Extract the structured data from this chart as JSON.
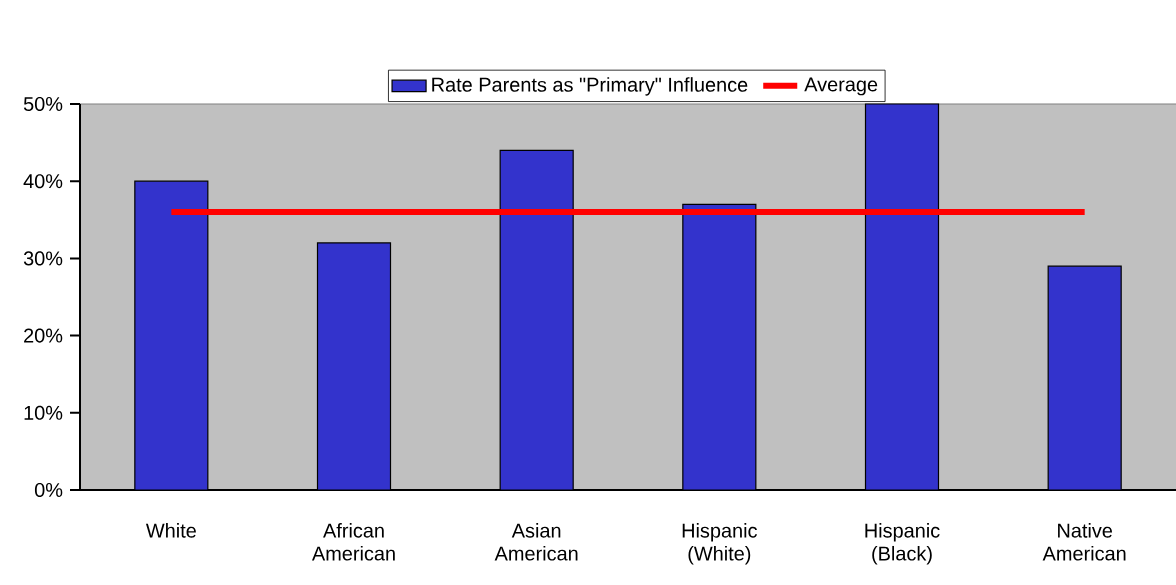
{
  "chart_data": {
    "type": "bar",
    "categories": [
      "White",
      "African American",
      "Asian American",
      "Hispanic (White)",
      "Hispanic (Black)",
      "Native American"
    ],
    "series": [
      {
        "name": "Rate Parents as \"Primary\" Influence",
        "color": "#3333cc",
        "values": [
          40,
          32,
          44,
          37,
          50,
          29
        ]
      },
      {
        "name": "Average",
        "type": "line",
        "color": "#ff0000",
        "values": [
          36,
          36,
          36,
          36,
          36,
          36
        ]
      }
    ],
    "ylim": [
      0,
      50
    ],
    "yticks": [
      {
        "value": 0,
        "label": "0%"
      },
      {
        "value": 10,
        "label": "10%"
      },
      {
        "value": 20,
        "label": "20%"
      },
      {
        "value": 30,
        "label": "30%"
      },
      {
        "value": 40,
        "label": "40%"
      },
      {
        "value": 50,
        "label": "50%"
      }
    ],
    "legend": "top"
  }
}
